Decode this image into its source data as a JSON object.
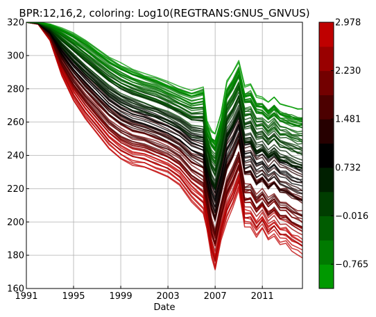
{
  "chart_data": {
    "type": "line",
    "title": "BPR:12,16,2, coloring: Log10(REGTRANS:GNUS_GNVUS)",
    "xlabel": "Date",
    "ylabel": "",
    "xlim": [
      1991,
      2014.4
    ],
    "ylim": [
      160,
      320
    ],
    "x_ticks": [
      "1991",
      "1995",
      "1999",
      "2003",
      "2007",
      "2011"
    ],
    "y_ticks": [
      "160",
      "180",
      "200",
      "220",
      "240",
      "260",
      "280",
      "300",
      "320"
    ],
    "grid": true,
    "series_count": 90,
    "x": [
      1991.0,
      1992.0,
      1993.0,
      1994.0,
      1995.0,
      1996.0,
      1997.0,
      1998.0,
      1999.0,
      2000.0,
      2001.0,
      2002.0,
      2003.0,
      2004.0,
      2005.0,
      2006.0,
      2006.3,
      2006.7,
      2007.0,
      2007.5,
      2008.0,
      2008.5,
      2009.0,
      2009.5,
      2010.0,
      2010.5,
      2011.0,
      2011.5,
      2012.0,
      2012.5,
      2013.0,
      2013.5,
      2014.0,
      2014.4
    ],
    "envelope_upper": [
      320,
      320,
      319,
      317,
      314,
      310,
      305,
      300,
      296,
      293,
      290,
      288,
      285,
      282,
      280,
      282,
      262,
      255,
      253,
      265,
      285,
      290,
      297,
      282,
      283,
      276,
      275,
      272,
      275,
      271,
      270,
      269,
      268,
      268
    ],
    "envelope_lower": [
      320,
      319,
      309,
      288,
      273,
      262,
      253,
      244,
      238,
      234,
      233,
      230,
      227,
      222,
      212,
      205,
      196,
      178,
      170,
      188,
      200,
      208,
      218,
      196,
      196,
      190,
      195,
      188,
      191,
      186,
      186,
      182,
      180,
      178
    ],
    "colorbar": {
      "label": "",
      "min": -1.14,
      "max": 2.978,
      "levels": 11,
      "colors": [
        "#009900",
        "#007a00",
        "#005c00",
        "#003d00",
        "#001f00",
        "#000000",
        "#260000",
        "#4c0000",
        "#730000",
        "#990000",
        "#bf0000"
      ],
      "ticks": [
        "−0.765",
        "−0.016",
        "0.732",
        "1.481",
        "2.230",
        "2.978"
      ],
      "tick_values": [
        -0.765,
        -0.016,
        0.732,
        1.481,
        2.23,
        2.978
      ]
    }
  }
}
